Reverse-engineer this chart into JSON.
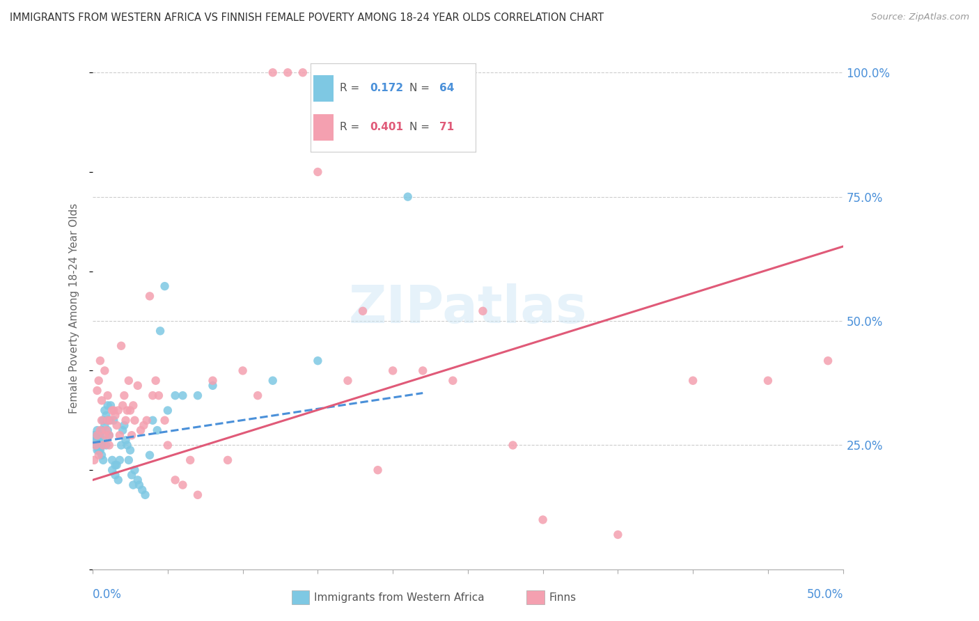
{
  "title": "IMMIGRANTS FROM WESTERN AFRICA VS FINNISH FEMALE POVERTY AMONG 18-24 YEAR OLDS CORRELATION CHART",
  "source": "Source: ZipAtlas.com",
  "ylabel": "Female Poverty Among 18-24 Year Olds",
  "color_blue": "#7EC8E3",
  "color_blue_line": "#4A90D9",
  "color_pink": "#F4A0B0",
  "color_pink_line": "#E05A78",
  "color_axis_label": "#4A90D9",
  "color_grid": "#cccccc",
  "blue_scatter_x": [
    0.001,
    0.002,
    0.002,
    0.003,
    0.003,
    0.003,
    0.003,
    0.004,
    0.004,
    0.004,
    0.005,
    0.005,
    0.005,
    0.006,
    0.006,
    0.006,
    0.007,
    0.007,
    0.007,
    0.008,
    0.008,
    0.009,
    0.009,
    0.01,
    0.01,
    0.01,
    0.011,
    0.011,
    0.012,
    0.013,
    0.013,
    0.014,
    0.015,
    0.015,
    0.016,
    0.017,
    0.018,
    0.019,
    0.02,
    0.021,
    0.022,
    0.023,
    0.024,
    0.025,
    0.026,
    0.027,
    0.028,
    0.03,
    0.031,
    0.033,
    0.035,
    0.038,
    0.04,
    0.043,
    0.045,
    0.048,
    0.05,
    0.055,
    0.06,
    0.07,
    0.08,
    0.12,
    0.15,
    0.21
  ],
  "blue_scatter_y": [
    0.27,
    0.25,
    0.26,
    0.27,
    0.24,
    0.26,
    0.28,
    0.24,
    0.26,
    0.27,
    0.24,
    0.25,
    0.27,
    0.23,
    0.25,
    0.28,
    0.22,
    0.26,
    0.3,
    0.29,
    0.32,
    0.25,
    0.31,
    0.28,
    0.3,
    0.33,
    0.27,
    0.3,
    0.33,
    0.22,
    0.2,
    0.3,
    0.19,
    0.21,
    0.21,
    0.18,
    0.22,
    0.25,
    0.28,
    0.29,
    0.26,
    0.25,
    0.22,
    0.24,
    0.19,
    0.17,
    0.2,
    0.18,
    0.17,
    0.16,
    0.15,
    0.23,
    0.3,
    0.28,
    0.48,
    0.57,
    0.32,
    0.35,
    0.35,
    0.35,
    0.37,
    0.38,
    0.42,
    0.75
  ],
  "pink_scatter_x": [
    0.001,
    0.002,
    0.003,
    0.003,
    0.004,
    0.004,
    0.005,
    0.005,
    0.006,
    0.006,
    0.007,
    0.008,
    0.008,
    0.009,
    0.01,
    0.01,
    0.011,
    0.011,
    0.012,
    0.013,
    0.014,
    0.015,
    0.016,
    0.017,
    0.018,
    0.019,
    0.02,
    0.021,
    0.022,
    0.023,
    0.024,
    0.025,
    0.026,
    0.027,
    0.028,
    0.03,
    0.032,
    0.034,
    0.036,
    0.038,
    0.04,
    0.042,
    0.044,
    0.048,
    0.05,
    0.055,
    0.06,
    0.065,
    0.07,
    0.08,
    0.09,
    0.1,
    0.11,
    0.12,
    0.13,
    0.14,
    0.15,
    0.16,
    0.17,
    0.18,
    0.19,
    0.2,
    0.22,
    0.24,
    0.26,
    0.28,
    0.3,
    0.35,
    0.4,
    0.45,
    0.49
  ],
  "pink_scatter_y": [
    0.22,
    0.25,
    0.27,
    0.36,
    0.23,
    0.38,
    0.28,
    0.42,
    0.3,
    0.34,
    0.25,
    0.27,
    0.4,
    0.28,
    0.3,
    0.35,
    0.27,
    0.25,
    0.3,
    0.32,
    0.32,
    0.31,
    0.29,
    0.32,
    0.27,
    0.45,
    0.33,
    0.35,
    0.3,
    0.32,
    0.38,
    0.32,
    0.27,
    0.33,
    0.3,
    0.37,
    0.28,
    0.29,
    0.3,
    0.55,
    0.35,
    0.38,
    0.35,
    0.3,
    0.25,
    0.18,
    0.17,
    0.22,
    0.15,
    0.38,
    0.22,
    0.4,
    0.35,
    1.0,
    1.0,
    1.0,
    0.8,
    1.0,
    0.38,
    0.52,
    0.2,
    0.4,
    0.4,
    0.38,
    0.52,
    0.25,
    0.1,
    0.07,
    0.38,
    0.38,
    0.42
  ],
  "xlim": [
    0.0,
    0.5
  ],
  "ylim": [
    0.0,
    1.05
  ],
  "blue_trend_x": [
    0.0,
    0.22
  ],
  "blue_trend_y": [
    0.255,
    0.355
  ],
  "pink_trend_x": [
    0.0,
    0.5
  ],
  "pink_trend_y": [
    0.18,
    0.65
  ]
}
